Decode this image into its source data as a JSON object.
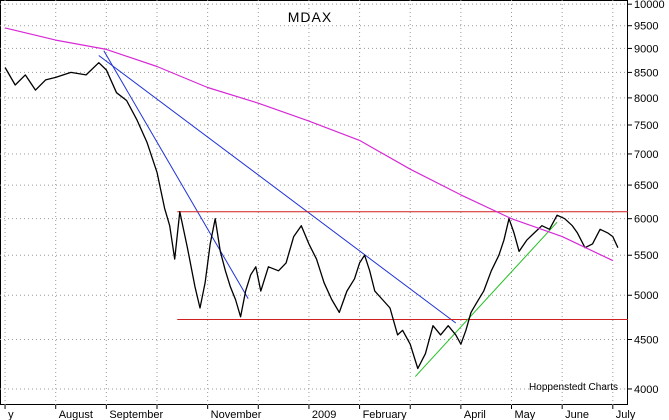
{
  "chart_data": {
    "type": "line",
    "title": "MDAX",
    "credit": "Hoppenstedt Charts",
    "y_scale": "log",
    "ylim": [
      3850,
      10100
    ],
    "y_ticks": [
      10000,
      9500,
      9000,
      8500,
      8000,
      7500,
      7000,
      6500,
      6000,
      5500,
      5000,
      4500,
      4000
    ],
    "y_tick_labels": [
      "10000",
      "9500",
      "9000",
      "8500",
      "8000",
      "7500",
      "7000",
      "6500",
      "6000",
      "5500",
      "5000",
      "4500",
      "4000"
    ],
    "x_range_months": [
      -0.1,
      12.3
    ],
    "x_ticks": [
      {
        "month": 0,
        "label": "y"
      },
      {
        "month": 1,
        "label": "August"
      },
      {
        "month": 2,
        "label": "September"
      },
      {
        "month": 3,
        "label": ""
      },
      {
        "month": 4,
        "label": "November"
      },
      {
        "month": 5,
        "label": ""
      },
      {
        "month": 6,
        "label": "2009"
      },
      {
        "month": 7,
        "label": "February"
      },
      {
        "month": 8,
        "label": ""
      },
      {
        "month": 9,
        "label": "April"
      },
      {
        "month": 10,
        "label": "May"
      },
      {
        "month": 11,
        "label": "June"
      },
      {
        "month": 12,
        "label": "July"
      }
    ],
    "grid": true,
    "series": [
      {
        "kind": "price",
        "color": "#000000",
        "points": [
          [
            0.0,
            8600
          ],
          [
            0.2,
            8250
          ],
          [
            0.4,
            8450
          ],
          [
            0.6,
            8150
          ],
          [
            0.8,
            8350
          ],
          [
            1.0,
            8400
          ],
          [
            1.3,
            8500
          ],
          [
            1.6,
            8450
          ],
          [
            1.85,
            8700
          ],
          [
            2.0,
            8550
          ],
          [
            2.2,
            8100
          ],
          [
            2.4,
            7950
          ],
          [
            2.6,
            7600
          ],
          [
            2.8,
            7200
          ],
          [
            3.0,
            6700
          ],
          [
            3.15,
            6150
          ],
          [
            3.25,
            5900
          ],
          [
            3.35,
            5450
          ],
          [
            3.45,
            6100
          ],
          [
            3.6,
            5600
          ],
          [
            3.75,
            5100
          ],
          [
            3.85,
            4850
          ],
          [
            3.95,
            5150
          ],
          [
            4.05,
            5650
          ],
          [
            4.15,
            6000
          ],
          [
            4.25,
            5550
          ],
          [
            4.35,
            5300
          ],
          [
            4.45,
            5100
          ],
          [
            4.55,
            4950
          ],
          [
            4.65,
            4750
          ],
          [
            4.75,
            5050
          ],
          [
            4.85,
            5250
          ],
          [
            4.95,
            5350
          ],
          [
            5.05,
            5050
          ],
          [
            5.2,
            5350
          ],
          [
            5.4,
            5300
          ],
          [
            5.55,
            5400
          ],
          [
            5.7,
            5750
          ],
          [
            5.85,
            5900
          ],
          [
            6.0,
            5650
          ],
          [
            6.15,
            5450
          ],
          [
            6.3,
            5150
          ],
          [
            6.45,
            4950
          ],
          [
            6.6,
            4800
          ],
          [
            6.75,
            5050
          ],
          [
            6.9,
            5200
          ],
          [
            7.0,
            5400
          ],
          [
            7.1,
            5500
          ],
          [
            7.2,
            5300
          ],
          [
            7.3,
            5050
          ],
          [
            7.45,
            4950
          ],
          [
            7.6,
            4850
          ],
          [
            7.75,
            4550
          ],
          [
            7.85,
            4600
          ],
          [
            8.0,
            4450
          ],
          [
            8.15,
            4200
          ],
          [
            8.3,
            4350
          ],
          [
            8.45,
            4650
          ],
          [
            8.6,
            4550
          ],
          [
            8.75,
            4650
          ],
          [
            8.9,
            4550
          ],
          [
            9.0,
            4450
          ],
          [
            9.1,
            4600
          ],
          [
            9.2,
            4800
          ],
          [
            9.3,
            4900
          ],
          [
            9.45,
            5050
          ],
          [
            9.6,
            5300
          ],
          [
            9.75,
            5500
          ],
          [
            9.85,
            5700
          ],
          [
            9.95,
            6000
          ],
          [
            10.05,
            5800
          ],
          [
            10.15,
            5550
          ],
          [
            10.3,
            5700
          ],
          [
            10.45,
            5800
          ],
          [
            10.6,
            5900
          ],
          [
            10.75,
            5850
          ],
          [
            10.9,
            6050
          ],
          [
            11.05,
            6000
          ],
          [
            11.2,
            5900
          ],
          [
            11.3,
            5800
          ],
          [
            11.45,
            5600
          ],
          [
            11.6,
            5650
          ],
          [
            11.75,
            5850
          ],
          [
            11.9,
            5800
          ],
          [
            12.0,
            5750
          ],
          [
            12.1,
            5600
          ]
        ]
      },
      {
        "kind": "moving-average",
        "color": "#d62ad6",
        "points": [
          [
            0.0,
            9450
          ],
          [
            1.0,
            9180
          ],
          [
            2.0,
            8980
          ],
          [
            3.0,
            8620
          ],
          [
            4.0,
            8200
          ],
          [
            5.0,
            7900
          ],
          [
            6.0,
            7570
          ],
          [
            7.0,
            7230
          ],
          [
            8.0,
            6750
          ],
          [
            9.0,
            6350
          ],
          [
            10.0,
            6000
          ],
          [
            11.0,
            5750
          ],
          [
            12.0,
            5430
          ]
        ]
      }
    ],
    "trendlines": [
      {
        "color": "#1f33d6",
        "from": [
          1.95,
          8950
        ],
        "to": [
          4.8,
          4960
        ]
      },
      {
        "color": "#1f33d6",
        "from": [
          1.85,
          8850
        ],
        "to": [
          8.9,
          4680
        ]
      },
      {
        "color": "#d21f1f",
        "from": [
          3.4,
          6100
        ],
        "to": [
          12.3,
          6100
        ]
      },
      {
        "color": "#d21f1f",
        "from": [
          3.4,
          4720
        ],
        "to": [
          12.3,
          4720
        ]
      },
      {
        "color": "#22c022",
        "from": [
          8.1,
          4120
        ],
        "to": [
          10.9,
          5950
        ]
      }
    ]
  }
}
